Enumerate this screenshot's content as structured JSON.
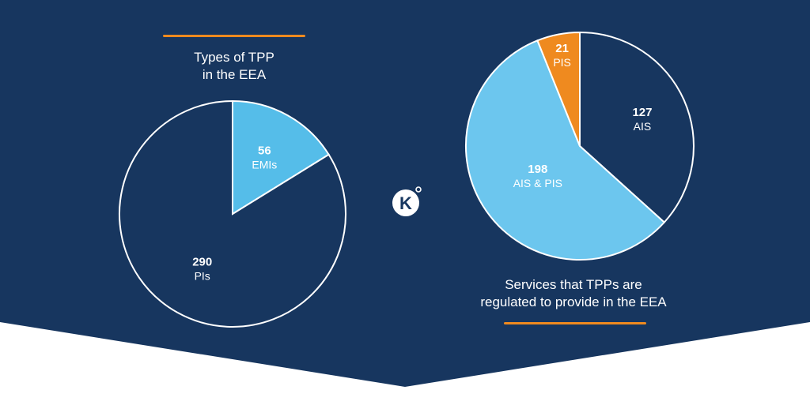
{
  "colors": {
    "background": "#17365f",
    "page": "#ffffff",
    "accent": "#ef8a1f",
    "dark_slice": "#17365f",
    "light_slice": "#6cc6ee",
    "light_slice_2": "#55bde9",
    "outline": "#ffffff"
  },
  "logo": {
    "icon": "kyckr-k-logo-icon",
    "letter": "K"
  },
  "chart_data": [
    {
      "type": "pie",
      "title_lines": [
        "Types of TPP",
        "in the EEA"
      ],
      "slices": [
        {
          "label": "EMIs",
          "value": 56,
          "color": "#55bde9"
        },
        {
          "label": "PIs",
          "value": 290,
          "color": "#17365f"
        }
      ]
    },
    {
      "type": "pie",
      "title_lines": [
        "Services that TPPs are",
        "regulated to provide in the EEA"
      ],
      "slices": [
        {
          "label": "AIS",
          "value": 127,
          "color": "#17365f"
        },
        {
          "label": "AIS & PIS",
          "value": 198,
          "color": "#6cc6ee"
        },
        {
          "label": "PIS",
          "value": 21,
          "color": "#ef8a1f"
        }
      ]
    }
  ]
}
